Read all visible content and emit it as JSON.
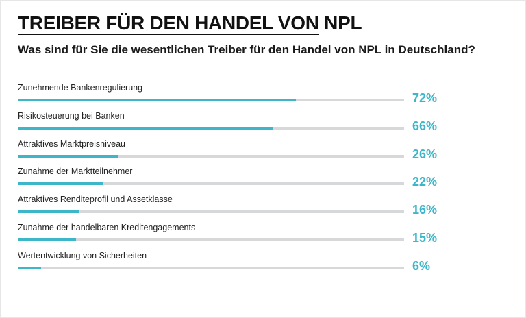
{
  "header": {
    "title": "TREIBER FÜR DEN HANDEL VON NPL",
    "subtitle": "Was sind für Sie die wesentlichen Treiber für den Handel von NPL in Deutschland?"
  },
  "colors": {
    "accent": "#3cb6c8",
    "track": "#d7d8da",
    "text": "#1a1a1a"
  },
  "chart_data": {
    "type": "bar",
    "orientation": "horizontal",
    "title": "TREIBER FÜR DEN HANDEL VON NPL",
    "subtitle": "Was sind für Sie die wesentlichen Treiber für den Handel von NPL in Deutschland?",
    "xlim": [
      0,
      100
    ],
    "grid": false,
    "categories": [
      "Zunehmende Bankenregulierung",
      "Risikosteuerung bei Banken",
      "Attraktives Marktpreisniveau",
      "Zunahme der Marktteilnehmer",
      "Attraktives Renditeprofil und Assetklasse",
      "Zunahme der handelbaren Kreditengagements",
      "Wertentwicklung von Sicherheiten"
    ],
    "values": [
      72,
      66,
      26,
      22,
      16,
      15,
      6
    ],
    "value_labels": [
      "72%",
      "66%",
      "26%",
      "22%",
      "16%",
      "15%",
      "6%"
    ]
  }
}
